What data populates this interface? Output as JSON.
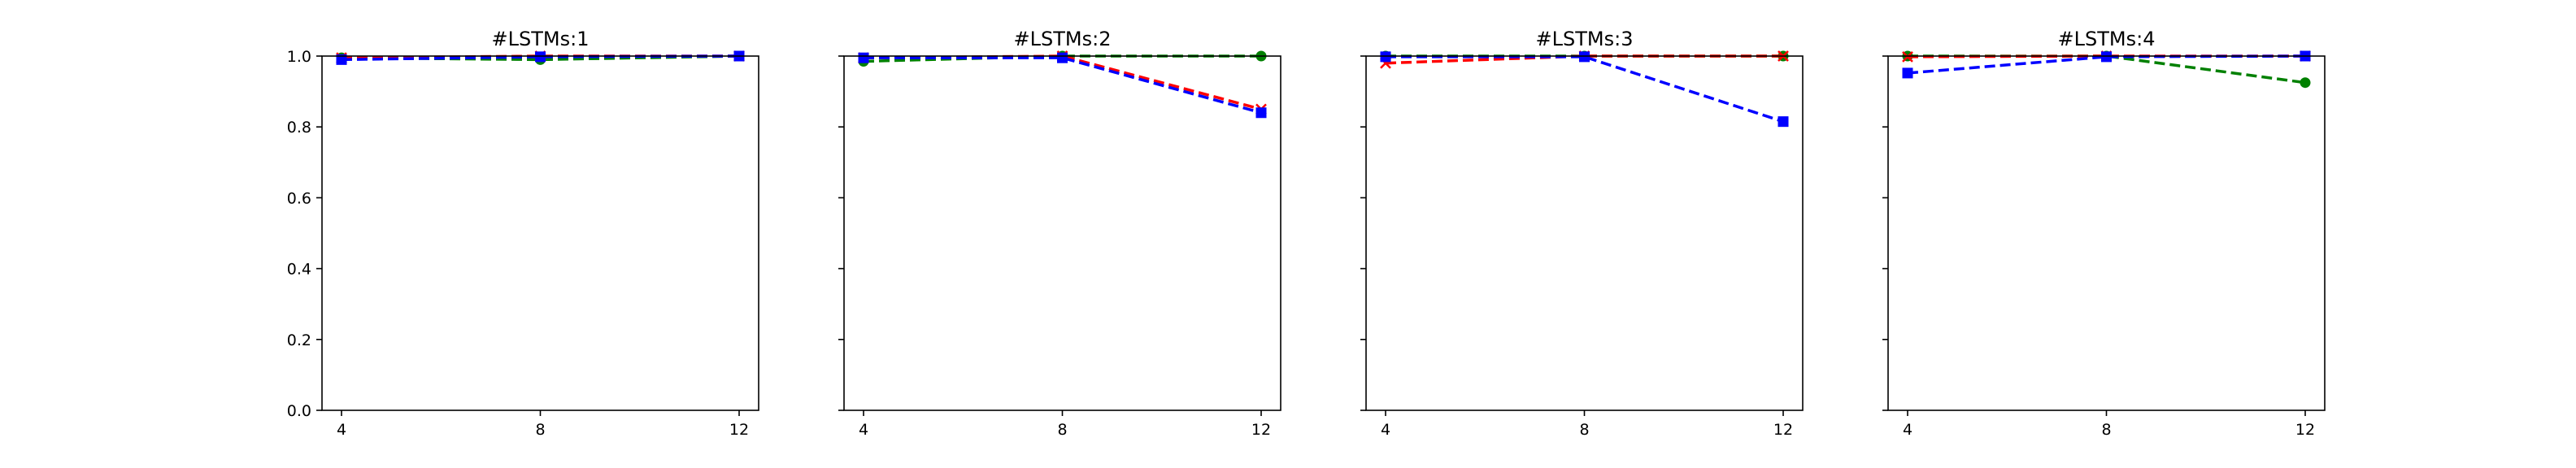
{
  "chart_data": [
    {
      "type": "line",
      "title": "#LSTMs:1",
      "x": [
        4,
        8,
        12
      ],
      "xticks": [
        "4",
        "8",
        "12"
      ],
      "ylim": [
        0,
        1.0
      ],
      "yticks": [
        "0.0",
        "0.2",
        "0.4",
        "0.6",
        "0.8",
        "1.0"
      ],
      "show_ytick_labels": true,
      "series": [
        {
          "color": "#008000",
          "marker": "circle",
          "values": [
            0.995,
            0.99,
            1.0
          ]
        },
        {
          "color": "#ff0000",
          "marker": "x",
          "values": [
            0.995,
            1.0,
            1.0
          ]
        },
        {
          "color": "#0000ff",
          "marker": "square",
          "values": [
            0.99,
            0.998,
            1.0
          ]
        }
      ]
    },
    {
      "type": "line",
      "title": "#LSTMs:2",
      "x": [
        4,
        8,
        12
      ],
      "xticks": [
        "4",
        "8",
        "12"
      ],
      "ylim": [
        0,
        1.0
      ],
      "yticks": [
        "0.0",
        "0.2",
        "0.4",
        "0.6",
        "0.8",
        "1.0"
      ],
      "show_ytick_labels": false,
      "series": [
        {
          "color": "#008000",
          "marker": "circle",
          "values": [
            0.985,
            1.0,
            1.0
          ]
        },
        {
          "color": "#ff0000",
          "marker": "x",
          "values": [
            0.995,
            1.0,
            0.85
          ]
        },
        {
          "color": "#0000ff",
          "marker": "square",
          "values": [
            0.995,
            0.995,
            0.84
          ]
        }
      ]
    },
    {
      "type": "line",
      "title": "#LSTMs:3",
      "x": [
        4,
        8,
        12
      ],
      "xticks": [
        "4",
        "8",
        "12"
      ],
      "ylim": [
        0,
        1.0
      ],
      "yticks": [
        "0.0",
        "0.2",
        "0.4",
        "0.6",
        "0.8",
        "1.0"
      ],
      "show_ytick_labels": false,
      "series": [
        {
          "color": "#008000",
          "marker": "circle",
          "values": [
            1.0,
            1.0,
            1.0
          ]
        },
        {
          "color": "#ff0000",
          "marker": "x",
          "values": [
            0.98,
            1.0,
            1.0
          ]
        },
        {
          "color": "#0000ff",
          "marker": "square",
          "values": [
            0.998,
            0.998,
            0.815
          ]
        }
      ]
    },
    {
      "type": "line",
      "title": "#LSTMs:4",
      "x": [
        4,
        8,
        12
      ],
      "xticks": [
        "4",
        "8",
        "12"
      ],
      "ylim": [
        0,
        1.0
      ],
      "yticks": [
        "0.0",
        "0.2",
        "0.4",
        "0.6",
        "0.8",
        "1.0"
      ],
      "show_ytick_labels": false,
      "series": [
        {
          "color": "#008000",
          "marker": "circle",
          "values": [
            1.0,
            1.0,
            0.925
          ]
        },
        {
          "color": "#ff0000",
          "marker": "x",
          "values": [
            0.998,
            1.0,
            1.0
          ]
        },
        {
          "color": "#0000ff",
          "marker": "square",
          "values": [
            0.952,
            0.998,
            1.0
          ]
        }
      ]
    }
  ]
}
